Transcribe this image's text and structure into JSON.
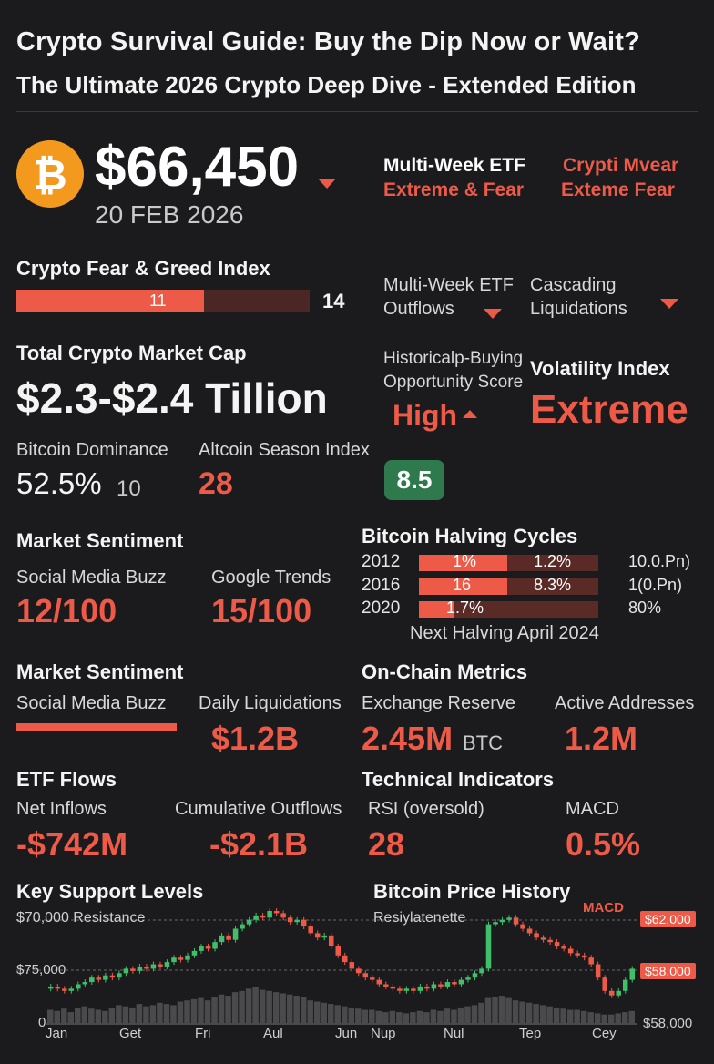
{
  "title": "Crypto Survival Guide: Buy the Dip Now or Wait?",
  "subtitle": "The Ultimate 2026 Crypto Deep Dive - Extended Edition",
  "price": {
    "value": "$66,450",
    "date": "20 FEB 2026"
  },
  "header_right": {
    "a_line1": "Multi-Week ETF",
    "a_line2": "Extreme & Fear",
    "b_line1": "Crypti Mvear",
    "b_line2": "Exteme Fear"
  },
  "fear_greed": {
    "label": "Crypto Fear & Greed Index",
    "value_in_bar": "11",
    "value_end": "14",
    "fill_fraction": 0.64
  },
  "etf_outflows": {
    "line1": "Multi-Week ETF",
    "line2": "Outflows"
  },
  "liquidations": {
    "line1": "Cascading",
    "line2": "Liquidations"
  },
  "market_cap": {
    "label": "Total Crypto Market Cap",
    "value": "$2.3-$2.4 Tillion"
  },
  "opportunity": {
    "line1": "Historicalp-Buying",
    "line2": "Opportunity Score",
    "value": "High",
    "score": "8.5"
  },
  "volatility": {
    "label": "Volatility Index",
    "value": "Extreme"
  },
  "dominance": {
    "label": "Bitcoin Dominance",
    "value": "52.5%",
    "extra": "10"
  },
  "altseason": {
    "label": "Altcoin Season Index",
    "value": "28"
  },
  "sentiment1": {
    "label": "Market Sentiment",
    "social_label": "Social Media Buzz",
    "social_value": "12/100",
    "google_label": "Google Trends",
    "google_value": "15/100"
  },
  "halving": {
    "label": "Bitcoin Halving Cycles",
    "rows": [
      {
        "year": "2012",
        "a": "1%",
        "b": "1.2%",
        "c": "10.0.Pn)",
        "fill": 0.49
      },
      {
        "year": "2016",
        "a": "16",
        "b": "8.3%",
        "c": "1(0.Pn)",
        "fill": 0.49
      },
      {
        "year": "2020",
        "a": "1.7%",
        "b": "",
        "c": "80%",
        "fill": 0.2
      }
    ],
    "footer": "Next Halving April 2024"
  },
  "sentiment2": {
    "label": "Market Sentiment",
    "social_label": "Social Media Buzz",
    "liq_label": "Daily Liquidations",
    "liq_value": "$1.2B"
  },
  "onchain": {
    "label": "On-Chain Metrics",
    "reserve_label": "Exchange Reserve",
    "reserve_value": "2.45M",
    "reserve_unit": "BTC",
    "active_label": "Active Addresses",
    "active_value": "1.2M"
  },
  "etf": {
    "label": "ETF Flows",
    "net_label": "Net Inflows",
    "net_value": "-$742M",
    "cum_label": "Cumulative Outflows",
    "cum_value": "-$2.1B"
  },
  "technical": {
    "label": "Technical Indicators",
    "rsi_label": "RSI (oversold)",
    "rsi_value": "28",
    "macd_label": "MACD",
    "macd_value": "0.5%"
  },
  "chart_labels": {
    "left_title": "Key Support Levels",
    "right_title": "Bitcoin Price History",
    "resistance_left": "$70,000 Resistance",
    "resistance_right": "Resiylatenette",
    "level_75": "$75,000",
    "zero": "0",
    "macd": "MACD",
    "tag_62": "$62,000",
    "tag_58": "$58,000",
    "bottom_58": "$58,000"
  },
  "colors": {
    "up": "#3fbf6a",
    "down": "#ee5a48",
    "accent": "#ee5a48",
    "bg": "#1b1b1d",
    "score_bg": "#2f7a4c",
    "coin": "#f39a1e"
  },
  "chart_data": {
    "type": "candlestick",
    "x_ticks": [
      "Jan",
      "Get",
      "Fri",
      "Aul",
      "Jun",
      "Nup",
      "Nul",
      "Tep",
      "Cey"
    ],
    "closes": [
      62,
      61,
      60,
      61,
      63,
      64,
      66,
      65,
      67,
      66,
      68,
      70,
      69,
      71,
      70,
      72,
      71,
      73,
      75,
      74,
      76,
      78,
      80,
      79,
      82,
      85,
      83,
      88,
      90,
      92,
      94,
      93,
      96,
      95,
      93,
      91,
      92,
      89,
      86,
      84,
      85,
      80,
      76,
      73,
      70,
      68,
      66,
      65,
      63,
      62,
      61,
      60,
      61,
      60,
      62,
      61,
      63,
      62,
      64,
      63,
      65,
      66,
      68,
      70,
      90,
      91,
      92,
      93,
      90,
      88,
      86,
      84,
      83,
      82,
      80,
      79,
      77,
      76,
      75,
      72,
      66,
      60,
      58,
      60,
      65,
      70
    ],
    "volume": [
      12,
      11,
      13,
      10,
      14,
      15,
      13,
      12,
      11,
      14,
      16,
      15,
      14,
      17,
      15,
      16,
      18,
      17,
      16,
      19,
      20,
      21,
      22,
      20,
      23,
      25,
      24,
      27,
      28,
      30,
      31,
      29,
      28,
      27,
      26,
      25,
      24,
      23,
      20,
      19,
      18,
      17,
      16,
      15,
      14,
      13,
      12,
      12,
      11,
      10,
      11,
      10,
      9,
      10,
      11,
      10,
      12,
      11,
      13,
      12,
      14,
      15,
      16,
      18,
      22,
      23,
      24,
      22,
      20,
      19,
      18,
      17,
      16,
      15,
      14,
      13,
      12,
      12,
      11,
      10,
      9,
      8,
      8,
      9,
      10,
      11
    ]
  }
}
